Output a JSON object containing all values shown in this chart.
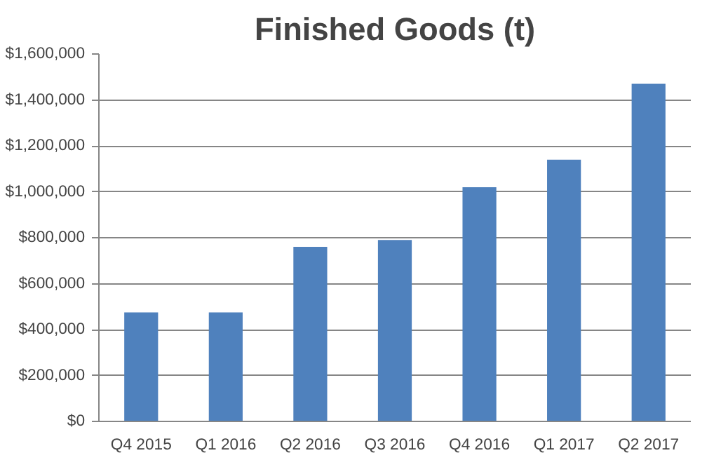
{
  "chart_data": {
    "type": "bar",
    "title": "Finished Goods (t)",
    "categories": [
      "Q4 2015",
      "Q1 2016",
      "Q2 2016",
      "Q3 2016",
      "Q4 2016",
      "Q1 2017",
      "Q2 2017"
    ],
    "values": [
      475000,
      475000,
      760000,
      790000,
      1020000,
      1140000,
      1470000
    ],
    "color": "#4f81bd",
    "ylim": [
      0,
      1600000
    ],
    "yticks": [
      {
        "value": 0,
        "label": "$0"
      },
      {
        "value": 200000,
        "label": "$200,000"
      },
      {
        "value": 400000,
        "label": "$400,000"
      },
      {
        "value": 600000,
        "label": "$600,000"
      },
      {
        "value": 800000,
        "label": "$800,000"
      },
      {
        "value": 1000000,
        "label": "$1,000,000"
      },
      {
        "value": 1200000,
        "label": "$1,200,000"
      },
      {
        "value": 1400000,
        "label": "$1,400,000"
      },
      {
        "value": 1600000,
        "label": "$1,600,000"
      }
    ],
    "grid": "y"
  }
}
